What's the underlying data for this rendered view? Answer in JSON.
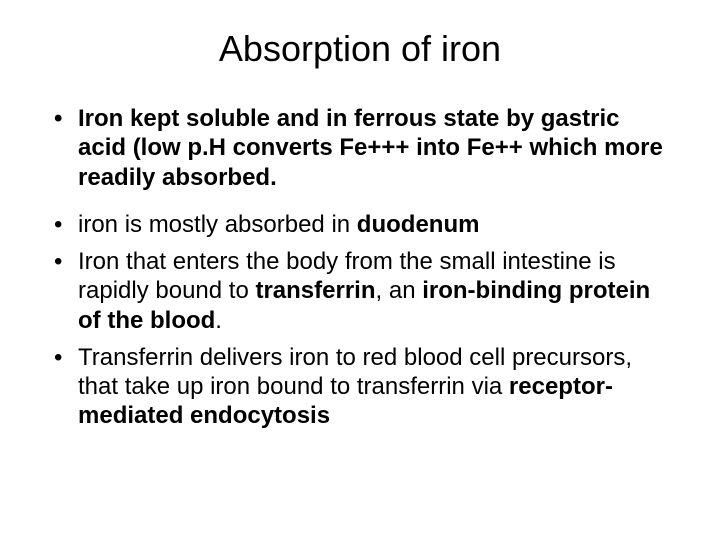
{
  "background_color": "#ffffff",
  "text_color": "#000000",
  "font_family": "Arial",
  "title": {
    "text": "Absorption of iron",
    "fontsize": 36,
    "weight": "normal",
    "align": "center"
  },
  "bullets_group1": {
    "fontsize": 24,
    "weight": "bold",
    "items": [
      {
        "runs": [
          {
            "text": "Iron kept soluble and in ferrous state by gastric acid (low p.H converts Fe+++ into Fe++ which more readily absorbed.",
            "bold": true
          }
        ]
      }
    ]
  },
  "bullets_group2": {
    "fontsize": 24,
    "weight": "normal",
    "items": [
      {
        "runs": [
          {
            "text": "iron is mostly absorbed in ",
            "bold": false
          },
          {
            "text": "duodenum",
            "bold": true
          }
        ]
      },
      {
        "runs": [
          {
            "text": "Iron that enters the body from the small intestine is rapidly bound to ",
            "bold": false
          },
          {
            "text": "transferrin",
            "bold": true
          },
          {
            "text": ", an ",
            "bold": false
          },
          {
            "text": "iron-binding protein of the blood",
            "bold": true
          },
          {
            "text": ".",
            "bold": false
          }
        ]
      },
      {
        "runs": [
          {
            "text": "Transferrin delivers iron to red blood cell precursors, that take up iron bound to transferrin via ",
            "bold": false
          },
          {
            "text": "receptor-mediated endocytosis",
            "bold": true
          }
        ]
      }
    ]
  }
}
